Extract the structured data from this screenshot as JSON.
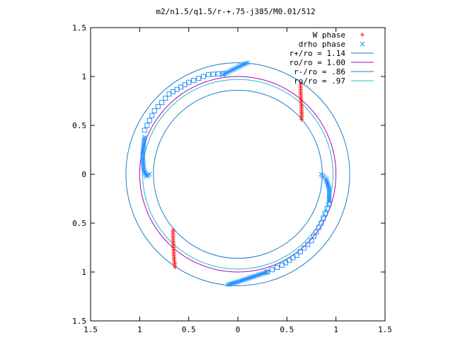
{
  "chart_data": {
    "type": "scatter",
    "title": "m2/n1.5/q1.5/r-+.75-j385/M0.01/512",
    "xlabel": "",
    "ylabel": "",
    "xlim": [
      -1.5,
      1.5
    ],
    "ylim": [
      -1.5,
      1.5
    ],
    "grid": false,
    "legend_position": "top-right",
    "x_ticks": [
      {
        "value": -1.5,
        "label": "1.5"
      },
      {
        "value": -1.0,
        "label": "1"
      },
      {
        "value": -0.5,
        "label": "0.5"
      },
      {
        "value": 0.0,
        "label": "0"
      },
      {
        "value": 0.5,
        "label": "0.5"
      },
      {
        "value": 1.0,
        "label": "1"
      },
      {
        "value": 1.5,
        "label": "1.5"
      }
    ],
    "y_ticks": [
      {
        "value": 1.5,
        "label": "1.5"
      },
      {
        "value": 1.0,
        "label": "1"
      },
      {
        "value": 0.5,
        "label": "0.5"
      },
      {
        "value": 0.0,
        "label": "0"
      },
      {
        "value": -0.5,
        "label": "0.5"
      },
      {
        "value": -1.0,
        "label": "1"
      },
      {
        "value": -1.5,
        "label": "1.5"
      }
    ],
    "scatter_series": [
      {
        "name": "W phase",
        "marker": "plus",
        "color": "#ff0000",
        "segments": [
          {
            "x": [
              0.64,
              0.64,
              0.645,
              0.65,
              0.65
            ],
            "y": [
              0.92,
              0.85,
              0.75,
              0.65,
              0.56
            ]
          },
          {
            "x": [
              -0.66,
              -0.66,
              -0.655,
              -0.65,
              -0.64
            ],
            "y": [
              -0.57,
              -0.65,
              -0.75,
              -0.85,
              -0.95
            ]
          }
        ]
      },
      {
        "name": "drho phase",
        "marker": "cross",
        "color": "#1e90ff",
        "segments": [
          {
            "x": [
              -0.15,
              -0.05,
              0.05,
              0.1
            ],
            "y": [
              1.02,
              1.07,
              1.12,
              1.14
            ]
          },
          {
            "x": [
              -0.95,
              -0.97,
              -0.96,
              -0.93,
              -0.9
            ],
            "y": [
              0.38,
              0.2,
              0.05,
              -0.02,
              0.0
            ]
          },
          {
            "x": [
              0.85,
              0.9,
              0.93,
              0.93
            ],
            "y": [
              0.0,
              -0.05,
              -0.15,
              -0.28
            ]
          },
          {
            "x": [
              -0.1,
              0.0,
              0.15,
              0.3
            ],
            "y": [
              -1.13,
              -1.1,
              -1.05,
              -1.0
            ]
          }
        ]
      },
      {
        "name": "",
        "marker": "square",
        "color": "#1e90ff",
        "segments": [
          {
            "x": [
              -0.95,
              -0.85,
              -0.7,
              -0.5,
              -0.3,
              -0.15
            ],
            "y": [
              0.45,
              0.65,
              0.82,
              0.94,
              1.02,
              1.03
            ]
          },
          {
            "x": [
              0.93,
              0.85,
              0.75,
              0.6,
              0.45,
              0.3
            ],
            "y": [
              -0.3,
              -0.5,
              -0.68,
              -0.83,
              -0.93,
              -1.0
            ]
          }
        ]
      }
    ],
    "line_series": [
      {
        "name": "r+/ro = 1.14",
        "color": "#1a7fc7",
        "radius": 1.14
      },
      {
        "name": "ro/ro = 1.00",
        "color": "#b000b0",
        "radius": 1.0
      },
      {
        "name": "r-/ro = .86",
        "color": "#1a7fc7",
        "radius": 0.86
      },
      {
        "name": "ro/ro = .97",
        "color": "#20c0c0",
        "radius": 0.97
      }
    ],
    "legend": [
      {
        "label": "W phase",
        "marker": "plus",
        "color": "#ff0000"
      },
      {
        "label": "drho phase",
        "marker": "cross",
        "color": "#1e90ff"
      },
      {
        "label": "r+/ro = 1.14",
        "marker": "line",
        "color": "#1a7fc7"
      },
      {
        "label": "ro/ro = 1.00",
        "marker": "line",
        "color": "#b000b0"
      },
      {
        "label": "r-/ro = .86",
        "marker": "line",
        "color": "#1a7fc7"
      },
      {
        "label": "ro/ro = .97",
        "marker": "line",
        "color": "#20c0c0"
      }
    ]
  }
}
